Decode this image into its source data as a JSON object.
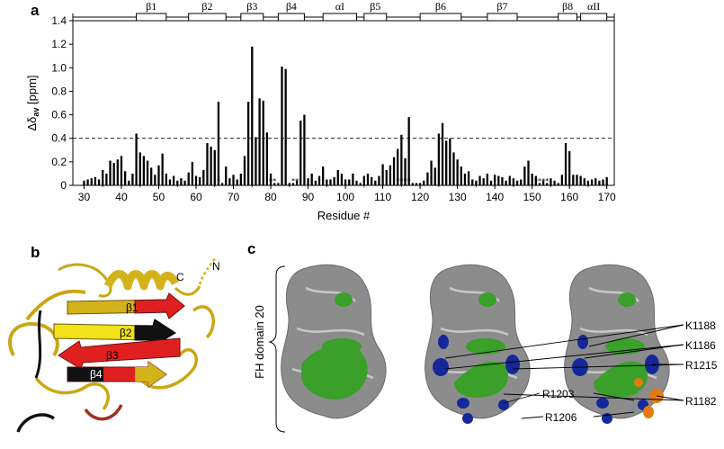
{
  "panels": {
    "a": "a",
    "b": "b",
    "c": "c"
  },
  "chart_data": {
    "type": "bar",
    "x": [
      30,
      31,
      32,
      33,
      34,
      35,
      36,
      37,
      38,
      39,
      40,
      41,
      42,
      43,
      44,
      45,
      46,
      47,
      48,
      49,
      50,
      51,
      52,
      53,
      54,
      55,
      56,
      57,
      58,
      59,
      60,
      61,
      62,
      63,
      64,
      65,
      66,
      67,
      68,
      69,
      70,
      71,
      72,
      73,
      74,
      75,
      76,
      77,
      78,
      79,
      80,
      81,
      82,
      83,
      84,
      85,
      86,
      87,
      88,
      89,
      90,
      91,
      92,
      93,
      94,
      95,
      96,
      97,
      98,
      99,
      100,
      101,
      102,
      103,
      104,
      105,
      106,
      107,
      108,
      109,
      110,
      111,
      112,
      113,
      114,
      115,
      116,
      117,
      118,
      119,
      120,
      121,
      122,
      123,
      124,
      125,
      126,
      127,
      128,
      129,
      130,
      131,
      132,
      133,
      134,
      135,
      136,
      137,
      138,
      139,
      140,
      141,
      142,
      143,
      144,
      145,
      146,
      147,
      148,
      149,
      150,
      151,
      152,
      153,
      154,
      155,
      156,
      157,
      158,
      159,
      160,
      161,
      162,
      163,
      164,
      165,
      166,
      167,
      168,
      169,
      170
    ],
    "values": [
      0.04,
      0.05,
      0.06,
      0.07,
      0.05,
      0.13,
      0.1,
      0.21,
      0.19,
      0.22,
      0.25,
      0.12,
      0.04,
      0.1,
      0.44,
      0.28,
      0.25,
      0.21,
      0.15,
      0.09,
      0.17,
      0.27,
      0.1,
      0.05,
      0.08,
      0.04,
      0.06,
      0.04,
      0.11,
      0.2,
      0.08,
      0.07,
      0.13,
      0.36,
      0.33,
      0.3,
      0.71,
      0.02,
      0.16,
      0.06,
      0.09,
      0.05,
      0.1,
      0.25,
      0.71,
      1.18,
      0.41,
      0.74,
      0.72,
      0.45,
      0.1,
      0.02,
      0.02,
      1.01,
      0.99,
      0.02,
      0.02,
      0.04,
      0.55,
      0.6,
      0.06,
      0.1,
      0.04,
      0.08,
      0.16,
      0.05,
      0.05,
      0.07,
      0.13,
      0.1,
      0.05,
      0.05,
      0.1,
      0.04,
      0.02,
      0.08,
      0.1,
      0.07,
      0.04,
      0.08,
      0.18,
      0.13,
      0.17,
      0.24,
      0.31,
      0.43,
      0.23,
      0.58,
      0.02,
      0.02,
      0.02,
      0.04,
      0.11,
      0.21,
      0.15,
      0.44,
      0.53,
      0.38,
      0.4,
      0.28,
      0.22,
      0.16,
      0.1,
      0.12,
      0.05,
      0.04,
      0.08,
      0.06,
      0.1,
      0.04,
      0.09,
      0.08,
      0.07,
      0.04,
      0.08,
      0.06,
      0.04,
      0.05,
      0.16,
      0.21,
      0.1,
      0.08,
      0.02,
      0.04,
      0.02,
      0.06,
      0.04,
      0.02,
      0.09,
      0.36,
      0.29,
      0.09,
      0.09,
      0.08,
      0.06,
      0.04,
      0.05,
      0.06,
      0.04,
      0.05,
      0.07
    ],
    "stars": [
      66,
      80,
      81,
      86,
      87,
      114,
      115,
      116,
      117,
      151,
      152,
      153,
      154
    ],
    "threshold": 0.4,
    "xlim": [
      27,
      172
    ],
    "ylim": [
      0,
      1.4
    ],
    "xticks": [
      30,
      40,
      50,
      60,
      70,
      80,
      90,
      100,
      110,
      120,
      130,
      140,
      150,
      160,
      170
    ],
    "yticks": [
      "0",
      "0.2",
      "0.4",
      "0.6",
      "0.8",
      "1.0",
      "1.2",
      "1.4"
    ],
    "yticks_v": [
      0,
      0.2,
      0.4,
      0.6,
      0.8,
      1.0,
      1.2,
      1.4
    ],
    "xlabel": "Residue #",
    "ylabel": "Δδ",
    "ylabel_sub": "av",
    "ylabel_unit": " [ppm]",
    "secondary_structure": [
      {
        "label": "β1",
        "start": 44,
        "end": 52
      },
      {
        "label": "β2",
        "start": 58,
        "end": 68
      },
      {
        "label": "β3",
        "start": 72,
        "end": 78
      },
      {
        "label": "β4",
        "start": 82,
        "end": 89
      },
      {
        "label": "αI",
        "start": 94,
        "end": 103
      },
      {
        "label": "β5",
        "start": 105,
        "end": 111
      },
      {
        "label": "β6",
        "start": 120,
        "end": 131
      },
      {
        "label": "β7",
        "start": 138,
        "end": 146
      },
      {
        "label": "β8",
        "start": 157,
        "end": 162
      },
      {
        "label": "αII",
        "start": 163,
        "end": 170
      }
    ]
  },
  "cartoon": {
    "labels": {
      "c_term": "C",
      "n_term": "N"
    },
    "strands": [
      "β1",
      "β2",
      "β3",
      "β4"
    ],
    "colors": {
      "helix": "#d4b21a",
      "highlight": "#e02020",
      "dark": "#111111",
      "rust": "#a03020"
    }
  },
  "surface": {
    "side_label": "FH domain 20",
    "residues": [
      "K1188",
      "K1186",
      "R1215",
      "R1182",
      "R1203",
      "R1206"
    ],
    "colors": {
      "surface": "#8c8c8c",
      "green": "#3aa02a",
      "blue": "#14289a",
      "orange": "#e67a10"
    }
  }
}
